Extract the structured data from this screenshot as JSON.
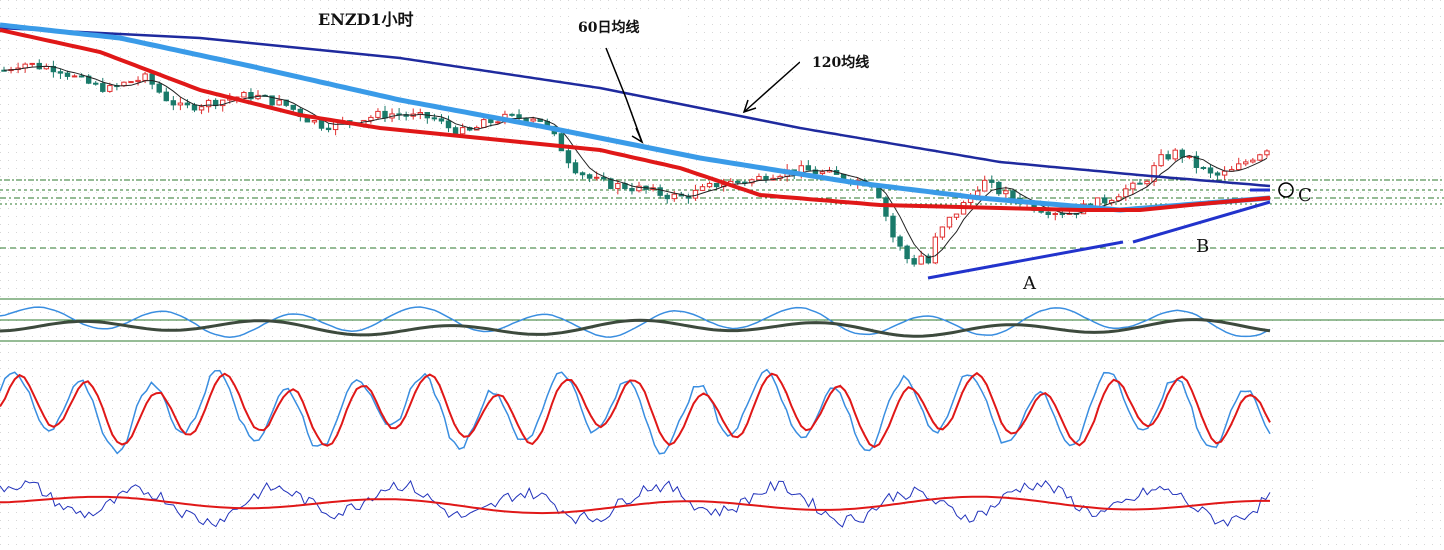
{
  "chart_data": {
    "type": "candlestick",
    "title": "ENZD1小时",
    "annotations": {
      "ma60": "60日均线",
      "ma120": "120均线",
      "point_a": "A",
      "point_b": "B",
      "point_c": "C"
    },
    "colors": {
      "up_candle": "#e03030",
      "down_candle": "#1a7a6a",
      "ma120": "#1f2a9e",
      "ma60": "#3a9be8",
      "ma_red": "#e01818",
      "ma_thin": "#222222",
      "trendline": "#2233cc",
      "guide": "#2d7a2d",
      "osc_dark": "#3d4a3d",
      "osc_blue": "#3a8ee0",
      "osc_red": "#e01818",
      "osc_navy": "#2233bb"
    },
    "close_series": [
      0.5705,
      0.5715,
      0.571,
      0.5708,
      0.5695,
      0.5685,
      0.568,
      0.569,
      0.5695,
      0.567,
      0.5655,
      0.566,
      0.5665,
      0.567,
      0.5672,
      0.5665,
      0.5658,
      0.5642,
      0.5632,
      0.5636,
      0.564,
      0.5646,
      0.5648,
      0.5644,
      0.5643,
      0.563,
      0.5622,
      0.5635,
      0.5642,
      0.5643,
      0.5644,
      0.5615,
      0.5578,
      0.5562,
      0.5555,
      0.5552,
      0.5548,
      0.5542,
      0.5538,
      0.5545,
      0.5555,
      0.5558,
      0.556,
      0.5568,
      0.5572,
      0.5574,
      0.557,
      0.5565,
      0.556,
      0.5555,
      0.5485,
      0.545,
      0.547,
      0.5505,
      0.553,
      0.556,
      0.5545,
      0.5535,
      0.5525,
      0.552,
      0.5518,
      0.5528,
      0.5535,
      0.5548,
      0.5555,
      0.5588,
      0.5598,
      0.558,
      0.5565,
      0.5572,
      0.5588,
      0.5603
    ]
  }
}
